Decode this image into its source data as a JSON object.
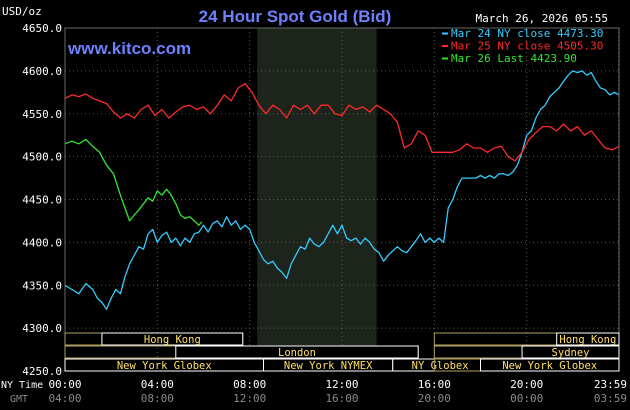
{
  "page": {
    "background": "#000000"
  },
  "chart_data": {
    "type": "line",
    "title": "24 Hour Spot Gold (Bid)",
    "ylabel": "USD/oz",
    "timestamp": "March 26, 2026 05:55",
    "brand": "www.kitco.com",
    "ylim": [
      4250,
      4650
    ],
    "yticks": [
      {
        "value": 4650,
        "label": "4650.0"
      },
      {
        "value": 4600,
        "label": "4600.0"
      },
      {
        "value": 4550,
        "label": "4550.0"
      },
      {
        "value": 4500,
        "label": "4500.0"
      },
      {
        "value": 4450,
        "label": "4450.0"
      },
      {
        "value": 4400,
        "label": "4400.0"
      },
      {
        "value": 4350,
        "label": "4350.0"
      },
      {
        "value": 4300,
        "label": "4300.0"
      },
      {
        "value": 4250,
        "label": "4250.0"
      }
    ],
    "xlim": [
      0,
      24
    ],
    "xticks": [
      {
        "value": 0,
        "ny": "00:00",
        "gmt": "04:00"
      },
      {
        "value": 4,
        "ny": "04:00",
        "gmt": "08:00"
      },
      {
        "value": 8,
        "ny": "08:00",
        "gmt": "12:00"
      },
      {
        "value": 12,
        "ny": "12:00",
        "gmt": "16:00"
      },
      {
        "value": 16,
        "ny": "16:00",
        "gmt": "20:00"
      },
      {
        "value": 20,
        "ny": "20:00",
        "gmt": "00:00"
      },
      {
        "value": 23.98,
        "ny": "23:59",
        "gmt": "03:59"
      }
    ],
    "x_axis_labels": {
      "ny": "NY Time",
      "gmt": "GMT"
    },
    "grid": true,
    "shaded_region": {
      "x_start": 8.33,
      "x_end": 13.5,
      "color": "#1c241c"
    },
    "legend_position": "top-right",
    "series": [
      {
        "name": "Mar 24 NY close 4473.30",
        "color": "#33ccff",
        "x": [
          0,
          0.3,
          0.6,
          0.9,
          1.2,
          1.4,
          1.6,
          1.8,
          2.0,
          2.2,
          2.4,
          2.6,
          2.8,
          3.0,
          3.2,
          3.4,
          3.6,
          3.8,
          4.0,
          4.2,
          4.4,
          4.6,
          4.8,
          5.0,
          5.2,
          5.4,
          5.6,
          5.8,
          6.0,
          6.2,
          6.4,
          6.6,
          6.8,
          7.0,
          7.2,
          7.4,
          7.6,
          7.8,
          8.0,
          8.2,
          8.4,
          8.6,
          8.8,
          9.0,
          9.2,
          9.4,
          9.6,
          9.8,
          10.0,
          10.2,
          10.4,
          10.6,
          10.8,
          11.0,
          11.2,
          11.4,
          11.6,
          11.8,
          12.0,
          12.2,
          12.4,
          12.6,
          12.8,
          13.0,
          13.2,
          13.4,
          13.6,
          13.8,
          14.0,
          14.2,
          14.4,
          14.6,
          14.8,
          15.0,
          15.2,
          15.4,
          15.6,
          15.8,
          16.0,
          16.2,
          16.4,
          16.6,
          16.8,
          17.0,
          17.2,
          17.4,
          17.6,
          17.8,
          18.0,
          18.2,
          18.4,
          18.6,
          18.8,
          19.0,
          19.2,
          19.4,
          19.6,
          19.8,
          20.0,
          20.2,
          20.4,
          20.6,
          20.8,
          21.0,
          21.2,
          21.4,
          21.6,
          21.8,
          22.0,
          22.2,
          22.4,
          22.6,
          22.8,
          23.0,
          23.2,
          23.4,
          23.6,
          23.8,
          24.0
        ],
        "y": [
          4350,
          4345,
          4340,
          4352,
          4345,
          4335,
          4330,
          4322,
          4335,
          4345,
          4340,
          4360,
          4375,
          4385,
          4395,
          4392,
          4410,
          4415,
          4400,
          4408,
          4412,
          4400,
          4405,
          4396,
          4405,
          4400,
          4410,
          4412,
          4420,
          4412,
          4422,
          4425,
          4418,
          4430,
          4420,
          4425,
          4415,
          4420,
          4415,
          4400,
          4390,
          4380,
          4375,
          4378,
          4370,
          4365,
          4358,
          4375,
          4385,
          4395,
          4392,
          4405,
          4398,
          4395,
          4400,
          4410,
          4420,
          4410,
          4420,
          4405,
          4402,
          4405,
          4398,
          4405,
          4400,
          4392,
          4388,
          4378,
          4385,
          4390,
          4395,
          4390,
          4388,
          4395,
          4402,
          4410,
          4400,
          4405,
          4400,
          4405,
          4400,
          4440,
          4450,
          4465,
          4475,
          4475,
          4475,
          4475,
          4478,
          4475,
          4478,
          4475,
          4480,
          4480,
          4478,
          4482,
          4490,
          4505,
          4525,
          4530,
          4545,
          4555,
          4560,
          4570,
          4575,
          4580,
          4588,
          4595,
          4600,
          4598,
          4600,
          4595,
          4598,
          4588,
          4580,
          4578,
          4572,
          4575,
          4572
        ]
      },
      {
        "name": "Mar 25 NY close 4505.30",
        "color": "#ff2a2a",
        "x": [
          0,
          0.3,
          0.6,
          0.9,
          1.2,
          1.5,
          1.8,
          2.1,
          2.4,
          2.7,
          3.0,
          3.3,
          3.6,
          3.9,
          4.2,
          4.5,
          4.8,
          5.1,
          5.4,
          5.7,
          6.0,
          6.3,
          6.6,
          6.9,
          7.2,
          7.5,
          7.8,
          8.1,
          8.4,
          8.7,
          9.0,
          9.3,
          9.6,
          9.9,
          10.2,
          10.5,
          10.8,
          11.1,
          11.4,
          11.7,
          12.0,
          12.3,
          12.6,
          12.9,
          13.2,
          13.5,
          13.8,
          14.1,
          14.4,
          14.7,
          15.0,
          15.3,
          15.6,
          15.9,
          16.2,
          16.5,
          16.8,
          17.1,
          17.4,
          17.7,
          18.0,
          18.3,
          18.6,
          18.9,
          19.2,
          19.5,
          19.8,
          20.1,
          20.4,
          20.7,
          21.0,
          21.3,
          21.6,
          21.9,
          22.2,
          22.5,
          22.8,
          23.1,
          23.4,
          23.7,
          24.0
        ],
        "y": [
          4568,
          4572,
          4570,
          4573,
          4568,
          4565,
          4562,
          4552,
          4545,
          4550,
          4545,
          4555,
          4560,
          4548,
          4555,
          4545,
          4552,
          4558,
          4560,
          4555,
          4558,
          4550,
          4560,
          4572,
          4565,
          4580,
          4585,
          4575,
          4560,
          4550,
          4560,
          4555,
          4545,
          4560,
          4555,
          4560,
          4550,
          4560,
          4560,
          4550,
          4548,
          4560,
          4555,
          4558,
          4552,
          4560,
          4555,
          4550,
          4540,
          4510,
          4515,
          4530,
          4525,
          4505,
          4505,
          4505,
          4505,
          4508,
          4515,
          4510,
          4510,
          4505,
          4510,
          4512,
          4500,
          4495,
          4505,
          4520,
          4528,
          4535,
          4535,
          4530,
          4538,
          4530,
          4535,
          4525,
          4530,
          4520,
          4510,
          4508,
          4512
        ]
      },
      {
        "name": "Mar 26 Last 4423.90",
        "color": "#33e533",
        "x": [
          0,
          0.3,
          0.6,
          0.9,
          1.2,
          1.5,
          1.8,
          2.1,
          2.4,
          2.6,
          2.8,
          3.0,
          3.2,
          3.4,
          3.6,
          3.8,
          4.0,
          4.2,
          4.4,
          4.6,
          4.8,
          5.0,
          5.2,
          5.4,
          5.6,
          5.8,
          5.93
        ],
        "y": [
          4515,
          4518,
          4515,
          4520,
          4512,
          4505,
          4490,
          4480,
          4455,
          4440,
          4425,
          4432,
          4438,
          4445,
          4452,
          4448,
          4460,
          4455,
          4462,
          4455,
          4445,
          4432,
          4428,
          4430,
          4425,
          4420,
          4424
        ]
      }
    ],
    "session_bars": [
      {
        "label": "Hong Kong",
        "x_start": 0,
        "x_end": 7.7,
        "row": 0,
        "bold_start": 1.6,
        "bold_end": 7.7
      },
      {
        "label": "London",
        "x_start": 0,
        "x_end": 15.3,
        "row": 1,
        "bold_start": 4.8,
        "bold_end": 15.3
      },
      {
        "label": "New York Globex",
        "x_start": 0,
        "x_end": 8.6,
        "row": 2,
        "bold_start": 0,
        "bold_end": 8.6
      },
      {
        "label": "New York NYMEX",
        "x_start": 8.6,
        "x_end": 14.2,
        "row": 2,
        "bold_start": 8.6,
        "bold_end": 14.2
      },
      {
        "label": "NY Globex",
        "x_start": 14.2,
        "x_end": 24,
        "row": 2,
        "bold_start": 14.2,
        "bold_end": 18.3
      },
      {
        "label": "Hong Kong",
        "x_start": 16.0,
        "x_end": 24,
        "row": 0,
        "bold_start": 21.3,
        "bold_end": 24
      },
      {
        "label": "Sydney",
        "x_start": 16.0,
        "x_end": 24,
        "row": 1,
        "bold_start": 19.8,
        "bold_end": 24
      },
      {
        "label": "New York Globex",
        "x_start": 16.0,
        "x_end": 24,
        "row": 2,
        "bold_start": 18.0,
        "bold_end": 24
      }
    ]
  }
}
